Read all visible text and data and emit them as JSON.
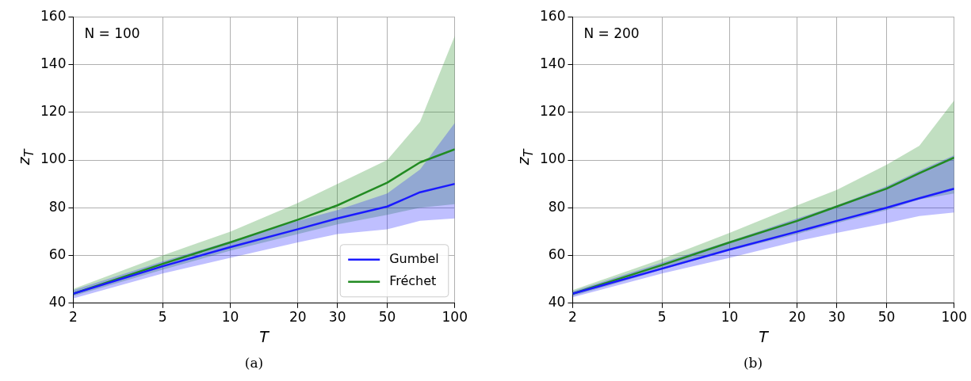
{
  "chart_data": [
    {
      "type": "line",
      "xlabel": "T",
      "ylabel": "z$_{T}$",
      "annotations": [
        "N = 100",
        "(a)"
      ],
      "log": "x",
      "xlim": [
        2,
        100
      ],
      "xticks": [
        2,
        5,
        10,
        20,
        30,
        50,
        100
      ],
      "ylim": [
        40,
        160
      ],
      "yticks": [
        40,
        60,
        80,
        100,
        120,
        140,
        160
      ],
      "grid": true,
      "legend": "bottom right",
      "x": [
        2,
        5,
        10,
        20,
        30,
        50,
        70,
        100
      ],
      "series": [
        {
          "name": "Gumbel",
          "color": "#1a1aff",
          "values": [
            44,
            55.5,
            63.5,
            71,
            75.5,
            80.5,
            86.5,
            90
          ],
          "lower": [
            42,
            52.5,
            59,
            65.5,
            69,
            71,
            74.5,
            75.5
          ],
          "upper": [
            45.5,
            57.5,
            66,
            74.5,
            79,
            86,
            96,
            115.5
          ]
        },
        {
          "name": "Fréchet",
          "color": "#228b22",
          "values": [
            44,
            56.5,
            65.5,
            75,
            81,
            90.5,
            99,
            104.5
          ],
          "lower": [
            43,
            54,
            62,
            69,
            73,
            77,
            80,
            81.5
          ],
          "upper": [
            46,
            60,
            70,
            82,
            90,
            100,
            116,
            152
          ]
        }
      ]
    },
    {
      "type": "line",
      "xlabel": "T",
      "ylabel": "z$_{T}$",
      "annotations": [
        "N = 200",
        "(b)"
      ],
      "log": "x",
      "xlim": [
        2,
        100
      ],
      "xticks": [
        2,
        5,
        10,
        20,
        30,
        50,
        100
      ],
      "ylim": [
        40,
        160
      ],
      "yticks": [
        40,
        60,
        80,
        100,
        120,
        140,
        160
      ],
      "grid": true,
      "x": [
        2,
        5,
        10,
        20,
        30,
        50,
        70,
        100
      ],
      "series": [
        {
          "color": "#1a1aff",
          "values": [
            44,
            54.5,
            62.5,
            70,
            74.5,
            80,
            84,
            88
          ],
          "lower": [
            42.5,
            52.5,
            59,
            66,
            69.5,
            73.5,
            76.5,
            78
          ],
          "upper": [
            45,
            57,
            66,
            75.5,
            81,
            89,
            95.5,
            102
          ]
        },
        {
          "color": "#228b22",
          "values": [
            44,
            56,
            65.5,
            74.5,
            80.5,
            88,
            94.5,
            101
          ],
          "lower": [
            43,
            54,
            62,
            69,
            73.5,
            79,
            83.5,
            86
          ],
          "upper": [
            45.5,
            58.5,
            69.5,
            81,
            87.5,
            98,
            106,
            125
          ]
        }
      ]
    }
  ]
}
